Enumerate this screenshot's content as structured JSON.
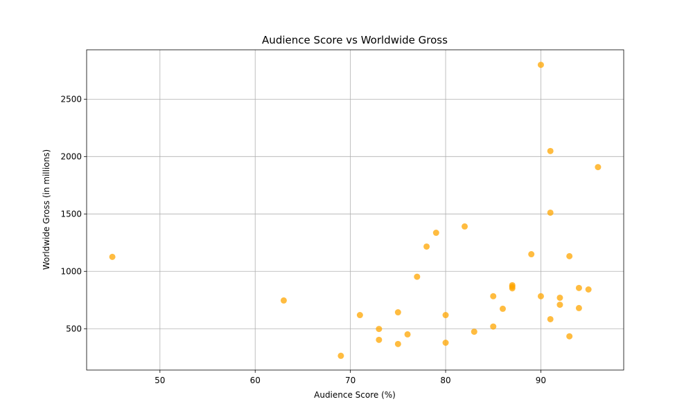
{
  "chart_data": {
    "type": "scatter",
    "title": "Audience Score vs Worldwide Gross",
    "xlabel": "Audience Score (%)",
    "ylabel": "Worldwide Gross (in millions)",
    "xlim": [
      42.3,
      98.7
    ],
    "ylim": [
      140,
      2930
    ],
    "x_ticks": [
      50,
      60,
      70,
      80,
      90
    ],
    "y_ticks": [
      500,
      1000,
      1500,
      2000,
      2500
    ],
    "grid": true,
    "color": "#FFA500",
    "alpha": 0.75,
    "points": [
      {
        "x": 45,
        "y": 1126
      },
      {
        "x": 63,
        "y": 746
      },
      {
        "x": 69,
        "y": 264
      },
      {
        "x": 71,
        "y": 619
      },
      {
        "x": 73,
        "y": 498
      },
      {
        "x": 73,
        "y": 403
      },
      {
        "x": 75,
        "y": 643
      },
      {
        "x": 75,
        "y": 367
      },
      {
        "x": 76,
        "y": 451
      },
      {
        "x": 77,
        "y": 953
      },
      {
        "x": 78,
        "y": 1216
      },
      {
        "x": 79,
        "y": 1336
      },
      {
        "x": 80,
        "y": 619
      },
      {
        "x": 80,
        "y": 378
      },
      {
        "x": 82,
        "y": 1391
      },
      {
        "x": 83,
        "y": 474
      },
      {
        "x": 85,
        "y": 783
      },
      {
        "x": 85,
        "y": 519
      },
      {
        "x": 86,
        "y": 674
      },
      {
        "x": 87,
        "y": 879
      },
      {
        "x": 87,
        "y": 866
      },
      {
        "x": 87,
        "y": 852
      },
      {
        "x": 89,
        "y": 1149
      },
      {
        "x": 90,
        "y": 2799
      },
      {
        "x": 90,
        "y": 783
      },
      {
        "x": 91,
        "y": 2048
      },
      {
        "x": 91,
        "y": 1511
      },
      {
        "x": 91,
        "y": 583
      },
      {
        "x": 92,
        "y": 770
      },
      {
        "x": 92,
        "y": 709
      },
      {
        "x": 93,
        "y": 1132
      },
      {
        "x": 93,
        "y": 434
      },
      {
        "x": 94,
        "y": 855
      },
      {
        "x": 94,
        "y": 680
      },
      {
        "x": 95,
        "y": 842
      },
      {
        "x": 96,
        "y": 1908
      }
    ]
  }
}
